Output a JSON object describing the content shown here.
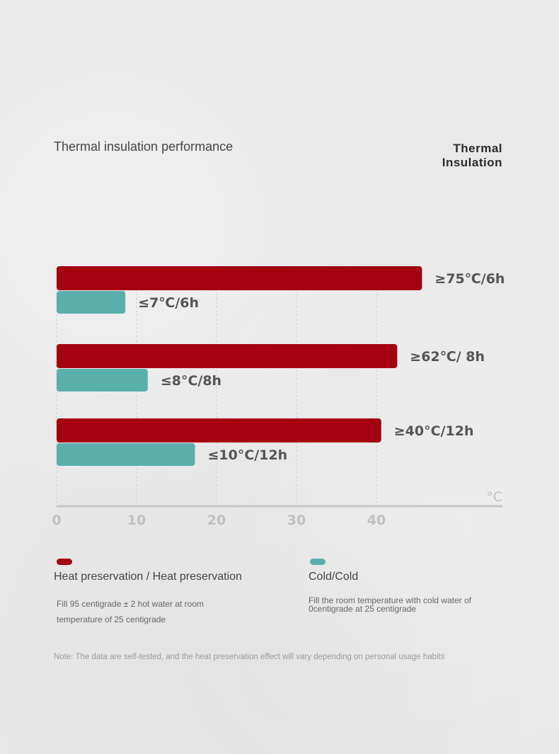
{
  "header": {
    "title": "Thermal insulation performance",
    "right_label": "Thermal\nInsulation"
  },
  "chart_data": {
    "type": "bar",
    "orientation": "horizontal",
    "x_ticks": [
      "0",
      "10",
      "20",
      "30",
      "40"
    ],
    "unit": "°C",
    "xlim": [
      0,
      55
    ],
    "grid": true,
    "groups": [
      {
        "hot": {
          "value": 45.7,
          "label": "≥75℃/6h"
        },
        "cold": {
          "value": 8.6,
          "label": "≤7℃/6h"
        }
      },
      {
        "hot": {
          "value": 42.6,
          "label": "≥62℃/ 8h"
        },
        "cold": {
          "value": 11.4,
          "label": "≤8°C/8h"
        }
      },
      {
        "hot": {
          "value": 40.6,
          "label": "≥40°C/12h"
        },
        "cold": {
          "value": 17.3,
          "label": "≤10°C/12h"
        }
      }
    ],
    "colors": {
      "hot": "#a50010",
      "cold": "#5aafad",
      "axis": "#c6c6c6",
      "label": "#555555",
      "tick": "#c0c0c0"
    }
  },
  "legend": {
    "hot": {
      "label": "Heat preservation / Heat preservation",
      "desc_line1": "Fill 95 centigrade ± 2 hot water at room",
      "desc_line2": "temperature of 25 centigrade"
    },
    "cold": {
      "label": "Cold/Cold",
      "desc_line1": "Fill the room temperature with cold water of",
      "desc_line2": "0centigrade at 25 centigrade"
    }
  },
  "note": "Note: The data are self-tested, and the heat preservation effect will vary depending on personal usage habits"
}
